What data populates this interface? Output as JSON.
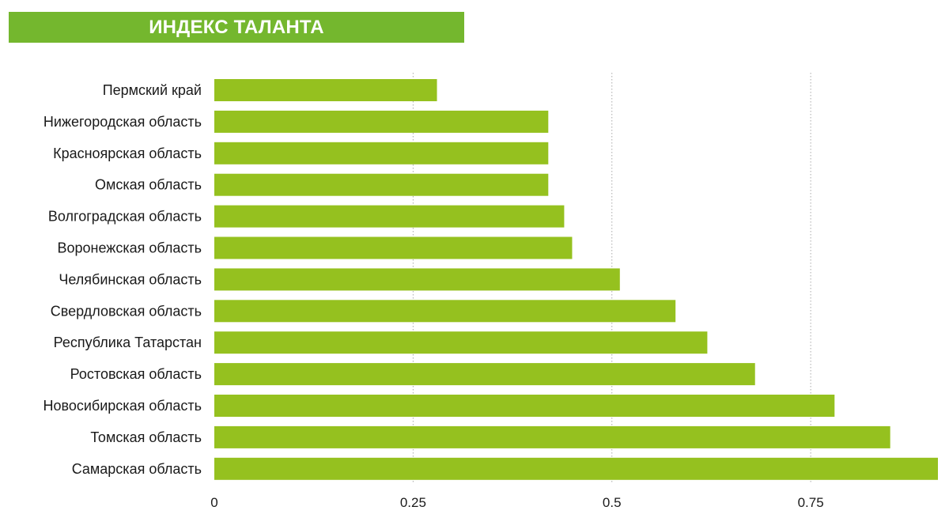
{
  "title": "ИНДЕКС ТАЛАНТА",
  "colors": {
    "title_background": "#74b72e",
    "title_text": "#ffffff",
    "bar": "#95c11f",
    "grid": "#aaaaaa"
  },
  "chart_data": {
    "type": "bar",
    "orientation": "horizontal",
    "title": "ИНДЕКС ТАЛАНТА",
    "xlabel": "",
    "ylabel": "",
    "categories": [
      "Пермский край",
      "Нижегородская область",
      "Красноярская область",
      "Омская область",
      "Волгоградская область",
      "Воронежская область",
      "Челябинская область",
      "Свердловская область",
      "Республика Татарстан",
      "Ростовская область",
      "Новосибирская область",
      "Томская область",
      "Самарская область"
    ],
    "values": [
      0.28,
      0.42,
      0.42,
      0.42,
      0.44,
      0.45,
      0.51,
      0.58,
      0.62,
      0.68,
      0.78,
      0.85,
      0.91
    ],
    "xlim": [
      0,
      0.91
    ],
    "xticks": [
      0,
      0.25,
      0.5,
      0.75
    ],
    "xtick_labels": [
      "0",
      "0.25",
      "0.5",
      "0.75"
    ],
    "grid": "vertical dotted",
    "legend": "none"
  }
}
